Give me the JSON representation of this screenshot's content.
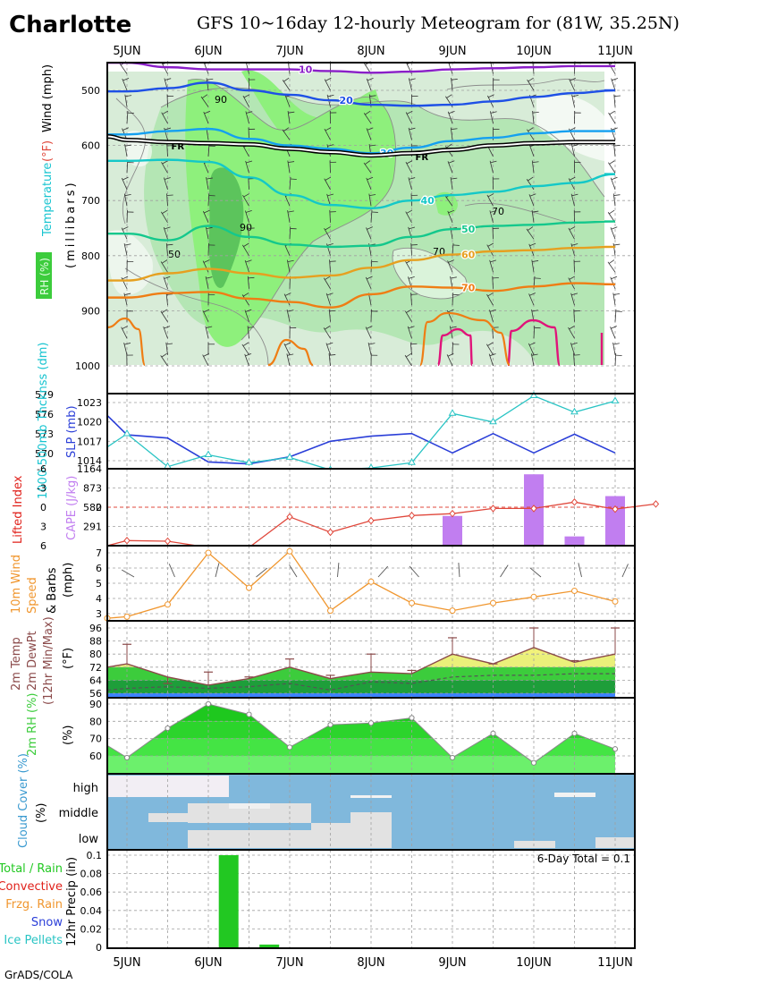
{
  "header": {
    "station": "Charlotte",
    "title": "GFS 10~16day 12-hourly Meteogram for (81W, 35.25N)",
    "credit": "GrADS/COLA"
  },
  "colors": {
    "rh_light": "#d8ecd8",
    "rh_mid": "#b4e6b4",
    "rh_bright": "#8ef07c",
    "rh_dark": "#5cc45c",
    "cape_bar": "#c17ef0",
    "lifted_index": "#e0483c",
    "wind10m": "#f0962e",
    "slp": "#2a3ed8",
    "thickness": "#29c4c4",
    "cloud_sky": "#80b8dc",
    "cloud_fill": "#e2e2e2",
    "rain_bar": "#22c822",
    "temp_fill_yellow": "#f2f27a",
    "temp_fill_green": "#3ccc3c",
    "dewpoint_fill": "#1e9e3a",
    "blue_band": "#3c82ff"
  },
  "chart_data": [
    {
      "panel": "upper_air",
      "type": "heatmap",
      "ylabel_parts": [
        "Wind (mph)",
        "Temperature",
        "(°F)",
        "(millibars)",
        "RH (%)"
      ],
      "x_ticks": [
        "5JUN",
        "6JUN",
        "7JUN",
        "8JUN",
        "9JUN",
        "10JUN",
        "11JUN"
      ],
      "y_ticks": [
        "500",
        "600",
        "700",
        "800",
        "900",
        "1000"
      ],
      "ylim": [
        450,
        1020
      ],
      "rh_contour_labels": [
        "90",
        "50",
        "90",
        "70",
        "70"
      ],
      "isotherms": [
        {
          "name": "10",
          "color": "#8a1ec8",
          "p": [
            450,
            458,
            462,
            462,
            462,
            465,
            468,
            466,
            462,
            460,
            458,
            456,
            456
          ]
        },
        {
          "name": "20",
          "color": "#1e50e6",
          "p": [
            502,
            496,
            486,
            500,
            508,
            518,
            526,
            528,
            526,
            520,
            512,
            505,
            500
          ]
        },
        {
          "name": "30",
          "color": "#14a0f0",
          "p": [
            580,
            574,
            570,
            588,
            600,
            606,
            614,
            604,
            592,
            586,
            578,
            574,
            574
          ]
        },
        {
          "name": "40",
          "color": "#14c8c8",
          "p": [
            628,
            626,
            630,
            658,
            690,
            708,
            714,
            700,
            690,
            684,
            674,
            668,
            652
          ]
        },
        {
          "name": "50",
          "color": "#14c88c",
          "p": [
            760,
            772,
            746,
            766,
            780,
            784,
            782,
            766,
            752,
            746,
            744,
            740,
            738
          ]
        },
        {
          "name": "60",
          "color": "#e6a020",
          "p": [
            845,
            832,
            824,
            832,
            840,
            836,
            822,
            808,
            798,
            792,
            790,
            786,
            784
          ]
        },
        {
          "name": "70",
          "color": "#ef7d14",
          "p": [
            876,
            868,
            866,
            878,
            884,
            894,
            870,
            856,
            858,
            864,
            856,
            850,
            852
          ]
        }
      ],
      "freezing_level_label": "FR",
      "freezing_level_p": [
        590,
        594,
        596,
        598,
        606,
        612,
        618,
        614,
        608,
        600,
        596,
        594,
        594
      ]
    },
    {
      "panel": "slp_thickness",
      "type": "line",
      "left_label": "1000-500mb Thcknss (dm)",
      "left_ticks": [
        "579",
        "576",
        "573",
        "570"
      ],
      "right_label": "SLP (mb)",
      "right_ticks": [
        "1023",
        "1020",
        "1017",
        "1014"
      ],
      "series": [
        {
          "name": "SLP (mb)",
          "values": [
            1021.0,
            1018.0,
            1017.5,
            1013.8,
            1013.5,
            1014.6,
            1017.0,
            1017.8,
            1018.2,
            1015.2,
            1018.2,
            1015.2,
            1018.1,
            1015.2
          ]
        },
        {
          "name": "1000-500mb Thcknss (dm)",
          "values": [
            571.0,
            573.0,
            568.0,
            569.8,
            568.6,
            569.4,
            567.5,
            567.8,
            568.6,
            576.1,
            574.8,
            578.8,
            576.3,
            578.0
          ]
        }
      ]
    },
    {
      "panel": "stability",
      "type": "bar",
      "left_label": "Lifted Index",
      "left_ticks": [
        "-6",
        "-3",
        "0",
        "3",
        "6"
      ],
      "right_label": "CAPE (J/kg)",
      "right_ticks": [
        "1164",
        "873",
        "582",
        "291"
      ],
      "series": [
        {
          "name": "Lifted Index",
          "values": [
            6.0,
            5.2,
            5.3,
            6.8,
            7.5,
            1.5,
            3.9,
            2.1,
            1.3,
            1.0,
            0.2,
            0.2,
            -0.8,
            0.3,
            -0.5
          ]
        },
        {
          "name": "CAPE (J/kg)",
          "values": [
            0,
            0,
            0,
            0,
            0,
            0,
            0,
            0,
            0,
            450,
            0,
            1080,
            140,
            750,
            0
          ]
        }
      ]
    },
    {
      "panel": "wind10m",
      "type": "line",
      "ylabel": "10m Wind Speed & Barbs (mph)",
      "y_ticks": [
        "7",
        "6",
        "5",
        "4",
        "3"
      ],
      "series": [
        {
          "name": "10m Wind Speed",
          "values": [
            2.7,
            2.8,
            3.6,
            7.0,
            4.7,
            7.1,
            3.2,
            5.1,
            3.7,
            3.2,
            3.7,
            4.1,
            4.5,
            3.8
          ]
        }
      ]
    },
    {
      "panel": "temperature",
      "type": "area",
      "ylabel": "2m Temp 2m DewPt (12hr Min/Max) (°F)",
      "y_ticks": [
        "96",
        "88",
        "80",
        "72",
        "64",
        "56"
      ],
      "series": [
        {
          "name": "2m Temp",
          "values": [
            72,
            74,
            66,
            61,
            65,
            72,
            65,
            69,
            68,
            80,
            74,
            84,
            75,
            80
          ]
        },
        {
          "name": "2m DewPt",
          "values": [
            58,
            59,
            60,
            59,
            60,
            62,
            58,
            63,
            62,
            66,
            67,
            67,
            68,
            68
          ]
        },
        {
          "name": "12hr Max",
          "values": [
            null,
            86,
            62,
            69,
            66,
            77,
            67,
            80,
            70,
            90,
            74,
            96,
            76,
            96
          ]
        }
      ]
    },
    {
      "panel": "rh2m",
      "type": "area",
      "ylabel": "2m RH (%)",
      "y_ticks": [
        "90",
        "80",
        "70",
        "60"
      ],
      "series": [
        {
          "name": "2m RH",
          "values": [
            66,
            59,
            76,
            90,
            84,
            65,
            78,
            79,
            82,
            59,
            73,
            56,
            73,
            64
          ]
        }
      ]
    },
    {
      "panel": "cloud_cover",
      "type": "heatmap",
      "ylabel": "Cloud Cover (%)",
      "levels": [
        "high",
        "middle",
        "low"
      ]
    },
    {
      "panel": "precip",
      "type": "bar",
      "ylabel": "12hr Precip (in)",
      "y_ticks": [
        "0.1",
        "0.08",
        "0.06",
        "0.04",
        "0.02",
        "0"
      ],
      "legend": [
        "Total / Rain",
        "Convective",
        "Frzg. Rain",
        "Snow",
        "Ice Pellets"
      ],
      "legend_colors": [
        "#22c822",
        "#e0201a",
        "#f0962e",
        "#2a3ed8",
        "#29c4c4"
      ],
      "total_text": "6-Day Total = 0.1",
      "series": [
        {
          "name": "Total / Rain",
          "values": [
            0,
            0,
            0,
            0.1,
            0.003,
            0,
            0,
            0,
            0,
            0,
            0,
            0,
            0,
            0
          ]
        }
      ]
    }
  ]
}
